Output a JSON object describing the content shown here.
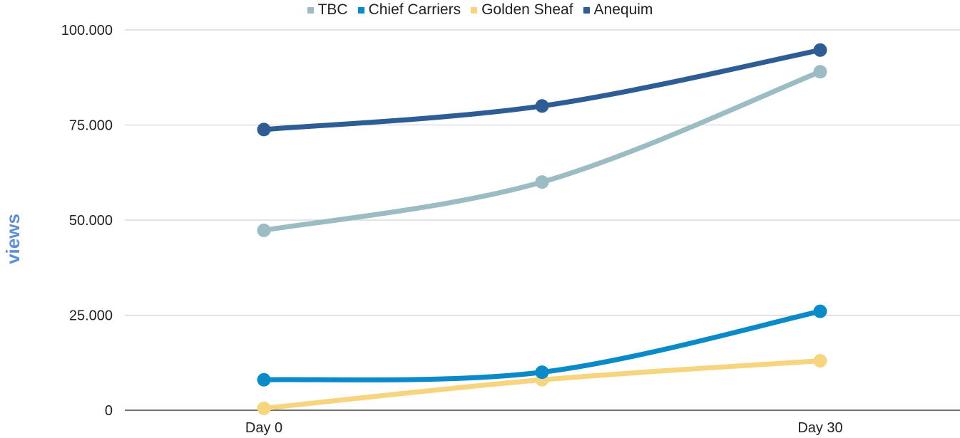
{
  "chart_data": {
    "type": "line",
    "title": "",
    "xlabel": "",
    "ylabel": "views",
    "ylim": [
      0,
      100000
    ],
    "y_ticks": [
      {
        "value": 0,
        "label": "0"
      },
      {
        "value": 25000,
        "label": "25.000"
      },
      {
        "value": 50000,
        "label": "50.000"
      },
      {
        "value": 75000,
        "label": "75.000"
      },
      {
        "value": 100000,
        "label": "100.000"
      }
    ],
    "categories": [
      "Day 0",
      "",
      "Day 30"
    ],
    "grid": true,
    "legend_position": "top-center",
    "smooth": true,
    "series": [
      {
        "name": "TBC",
        "color": "#9bbcc3",
        "values": [
          47300,
          60000,
          89000
        ]
      },
      {
        "name": "Chief Carriers",
        "color": "#0a8ac8",
        "values": [
          8000,
          10000,
          26000
        ]
      },
      {
        "name": "Golden Sheaf",
        "color": "#f7d57e",
        "values": [
          500,
          8000,
          13000
        ]
      },
      {
        "name": "Anequim",
        "color": "#2e5d95",
        "values": [
          73800,
          80000,
          94700
        ]
      }
    ]
  }
}
